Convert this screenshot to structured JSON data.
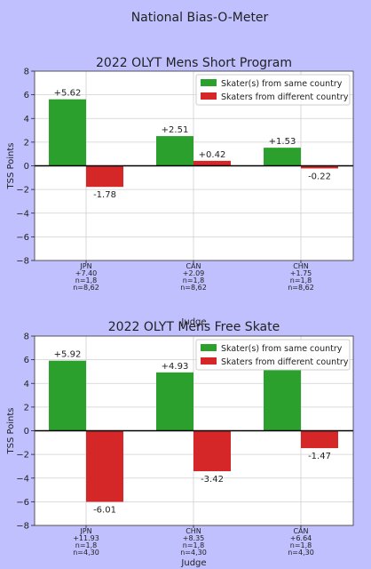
{
  "figure_title": "National Bias-O-Meter",
  "colors": {
    "background": "#c0c0ff",
    "same": "#2ca02c",
    "different": "#d62728"
  },
  "chart_data": [
    {
      "type": "bar",
      "title": "2022 OLYT Mens Short Program",
      "xlabel": "Judge",
      "ylabel": "TSS Points",
      "ylim": [
        -8,
        8
      ],
      "yticks": [
        "8",
        "6",
        "4",
        "2",
        "0",
        "−2",
        "−4",
        "−6",
        "−8"
      ],
      "grid": true,
      "legend_position": "top-right",
      "categories": [
        "JPN",
        "CAN",
        "CHN"
      ],
      "category_details": [
        [
          "+7.40",
          "n=1,8",
          "n=8,62"
        ],
        [
          "+2.09",
          "n=1,8",
          "n=8,62"
        ],
        [
          "+1.75",
          "n=1,8",
          "n=8,62"
        ]
      ],
      "series": [
        {
          "name": "Skater(s) from same country",
          "values": [
            5.62,
            2.51,
            1.53
          ],
          "labels": [
            "+5.62",
            "+2.51",
            "+1.53"
          ]
        },
        {
          "name": "Skaters from different country",
          "values": [
            -1.78,
            0.42,
            -0.22
          ],
          "labels": [
            "-1.78",
            "+0.42",
            "-0.22"
          ]
        }
      ]
    },
    {
      "type": "bar",
      "title": "2022 OLYT Mens Free Skate",
      "xlabel": "Judge",
      "ylabel": "TSS Points",
      "ylim": [
        -8,
        8
      ],
      "yticks": [
        "8",
        "6",
        "4",
        "2",
        "0",
        "−2",
        "−4",
        "−6",
        "−8"
      ],
      "grid": true,
      "legend_position": "top-right",
      "categories": [
        "JPN",
        "CHN",
        "CAN"
      ],
      "category_details": [
        [
          "+11.93",
          "n=1,8",
          "n=4,30"
        ],
        [
          "+8.35",
          "n=1,8",
          "n=4,30"
        ],
        [
          "+6.64",
          "n=1,8",
          "n=4,30"
        ]
      ],
      "series": [
        {
          "name": "Skater(s) from same country",
          "values": [
            5.92,
            4.93,
            5.17
          ],
          "labels": [
            "+5.92",
            "+4.93",
            ""
          ]
        },
        {
          "name": "Skaters from different country",
          "values": [
            -6.01,
            -3.42,
            -1.47
          ],
          "labels": [
            "-6.01",
            "-3.42",
            "-1.47"
          ]
        }
      ]
    }
  ]
}
